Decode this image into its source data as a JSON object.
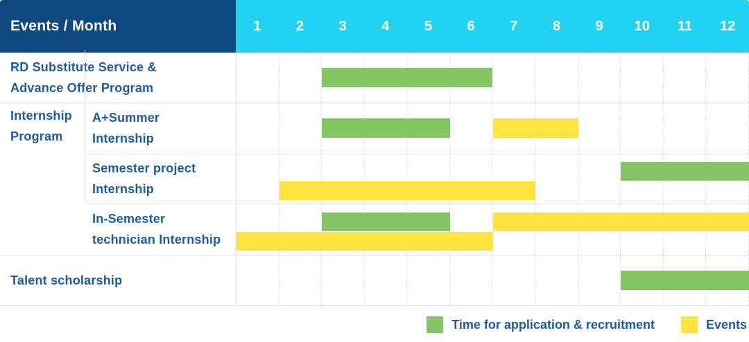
{
  "header": {
    "title": "Events / Month",
    "months": [
      "1",
      "2",
      "3",
      "4",
      "5",
      "6",
      "7",
      "8",
      "9",
      "10",
      "11",
      "12"
    ]
  },
  "colors": {
    "header_bg": "#0E4A7E",
    "months_bg": "#22D2F0",
    "recruitment": "#85C564",
    "event": "#FFE33E",
    "label_text": "#1D5BA6",
    "header_text": "#FFFFFF",
    "grid_line": "#E2E2E2"
  },
  "group_cell": {
    "label": "Internship Program",
    "label_lines": [
      "Internship",
      "Program"
    ]
  },
  "legend": {
    "items": [
      {
        "key": "recruitment",
        "label": "Time for application & recruitment"
      },
      {
        "key": "event",
        "label": "Events"
      }
    ]
  },
  "chart_data": {
    "type": "gantt",
    "title": "Events / Month",
    "x_axis": {
      "label": "Month",
      "ticks": [
        "1",
        "2",
        "3",
        "4",
        "5",
        "6",
        "7",
        "8",
        "9",
        "10",
        "11",
        "12"
      ],
      "range": [
        1,
        12
      ]
    },
    "series": [
      {
        "key": "recruitment",
        "name": "Time for application & recruitment",
        "color": "#85C564"
      },
      {
        "key": "event",
        "name": "Events",
        "color": "#FFE33E"
      }
    ],
    "rows": [
      {
        "group": null,
        "label": "RD Substitute Service & Advance Offer Program",
        "label_lines": [
          "RD Substitute Service &",
          "Advance Offer Program"
        ],
        "bars": [
          {
            "series": "recruitment",
            "start_month": 3,
            "end_month": 6,
            "line": "center"
          }
        ]
      },
      {
        "group": "Internship Program",
        "label": "A+Summer Internship",
        "label_lines": [
          "A+Summer",
          "Internship"
        ],
        "bars": [
          {
            "series": "recruitment",
            "start_month": 3,
            "end_month": 5,
            "line": "center"
          },
          {
            "series": "event",
            "start_month": 7,
            "end_month": 8,
            "line": "center"
          }
        ]
      },
      {
        "group": "Internship Program",
        "label": "Semester project Internship",
        "label_lines": [
          "Semester project",
          "Internship"
        ],
        "bars": [
          {
            "series": "recruitment",
            "start_month": 10,
            "end_month": 12,
            "line": "top"
          },
          {
            "series": "event",
            "start_month": 2,
            "end_month": 7,
            "line": "bottom"
          }
        ]
      },
      {
        "group": "Internship Program",
        "label": "In-Semester technician Internship",
        "label_lines": [
          "In-Semester",
          "technician Internship"
        ],
        "bars": [
          {
            "series": "recruitment",
            "start_month": 3,
            "end_month": 5,
            "line": "top"
          },
          {
            "series": "event",
            "start_month": 7,
            "end_month": 12,
            "line": "top"
          },
          {
            "series": "event",
            "start_month": 1,
            "end_month": 6,
            "line": "bottom"
          }
        ]
      },
      {
        "group": null,
        "label": "Talent scholarship",
        "label_lines": [
          "Talent scholarship"
        ],
        "bars": [
          {
            "series": "recruitment",
            "start_month": 10,
            "end_month": 12,
            "line": "center"
          }
        ]
      }
    ]
  }
}
